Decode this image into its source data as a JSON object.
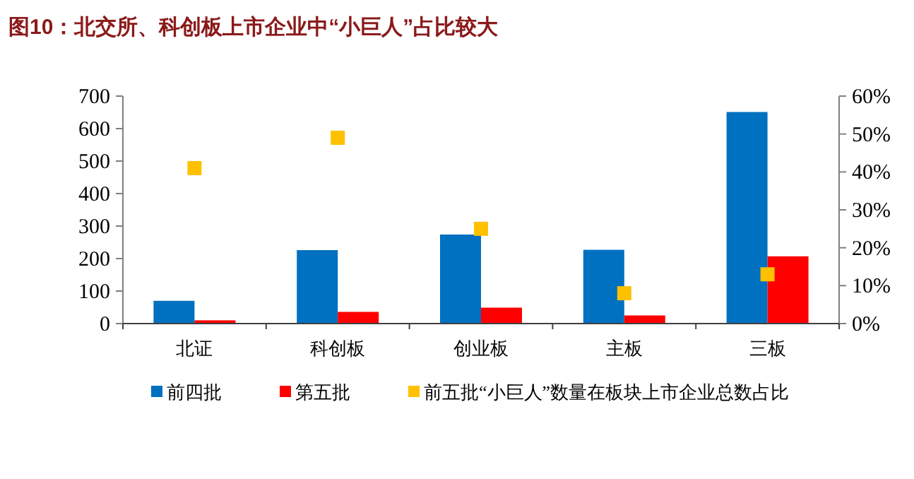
{
  "chart_data": {
    "type": "bar",
    "title": "图10：北交所、科创板上市企业中“小巨人”占比较大",
    "categories": [
      "北证",
      "科创板",
      "创业板",
      "主板",
      "三板"
    ],
    "series": [
      {
        "name": "前四批",
        "color": "#0070c0",
        "values": [
          70,
          226,
          274,
          227,
          651
        ]
      },
      {
        "name": "第五批",
        "color": "#ff0000",
        "values": [
          10,
          36,
          49,
          25,
          207
        ]
      },
      {
        "name": "前五批“小巨人”数量在板块上市企业总数占比",
        "type": "scatter",
        "axis": "y2",
        "marker": "square",
        "color": "#ffc000",
        "values": [
          41,
          49,
          25,
          8,
          13
        ]
      }
    ],
    "ylim": [
      0,
      700
    ],
    "yticks": [
      0,
      100,
      200,
      300,
      400,
      500,
      600,
      700
    ],
    "y2lim": [
      0,
      60
    ],
    "y2ticks": [
      {
        "value": 0,
        "label": "0%"
      },
      {
        "value": 10,
        "label": "10%"
      },
      {
        "value": 20,
        "label": "20%"
      },
      {
        "value": 30,
        "label": "30%"
      },
      {
        "value": 40,
        "label": "40%"
      },
      {
        "value": 50,
        "label": "50%"
      },
      {
        "value": 60,
        "label": "60%"
      }
    ],
    "legend": "bottom",
    "grid": false
  }
}
